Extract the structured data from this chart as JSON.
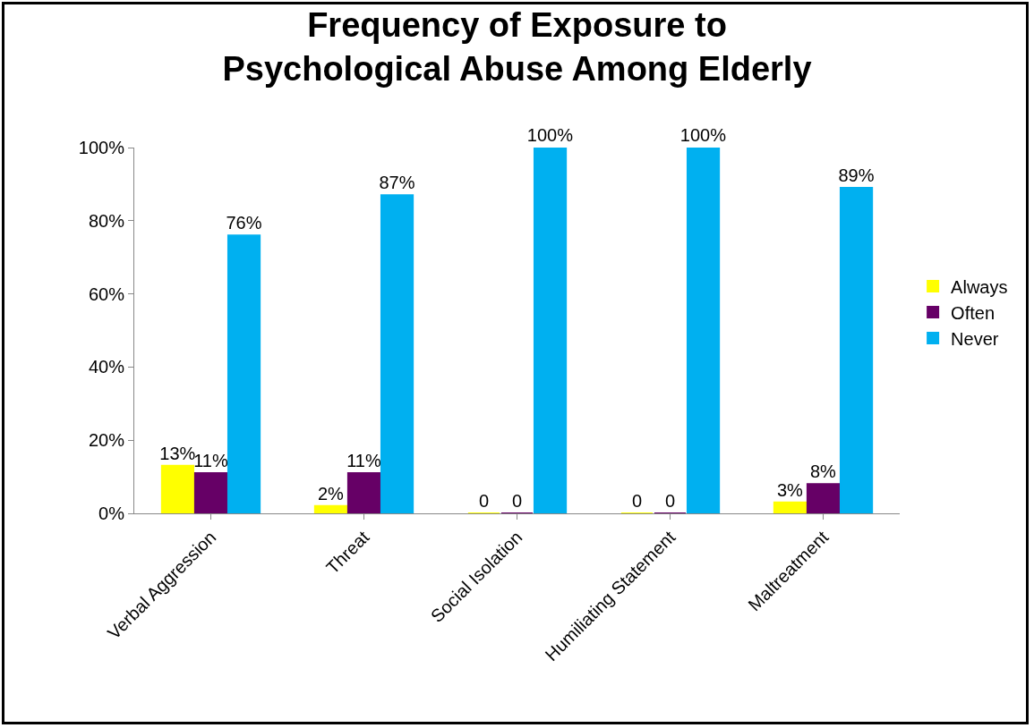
{
  "chart_data": {
    "type": "bar",
    "title": "Frequency of Exposure to Psychological Abuse Among Elderly",
    "categories": [
      "Verbal Aggression",
      "Threat",
      "Social Isolation",
      "Humiliating Statement",
      "Maltreatment"
    ],
    "series": [
      {
        "name": "Always",
        "color": "#ffff00",
        "values": [
          13,
          2,
          0,
          0,
          3
        ],
        "value_labels": [
          "13%",
          "2%",
          "0",
          "0",
          "3%"
        ]
      },
      {
        "name": "Often",
        "color": "#660066",
        "values": [
          11,
          11,
          0,
          0,
          8
        ],
        "value_labels": [
          "11%",
          "11%",
          "0",
          "0",
          "8%"
        ]
      },
      {
        "name": "Never",
        "color": "#00b0f0",
        "values": [
          76,
          87,
          100,
          100,
          89
        ],
        "value_labels": [
          "76%",
          "87%",
          "100%",
          "100%",
          "89%"
        ]
      }
    ],
    "ylim": [
      0,
      100
    ],
    "yticks": [
      {
        "value": 0,
        "label": "0%"
      },
      {
        "value": 20,
        "label": "20%"
      },
      {
        "value": 40,
        "label": "40%"
      },
      {
        "value": 60,
        "label": "60%"
      },
      {
        "value": 80,
        "label": "80%"
      },
      {
        "value": 100,
        "label": "100%"
      }
    ],
    "grid": false,
    "legend": "right"
  }
}
